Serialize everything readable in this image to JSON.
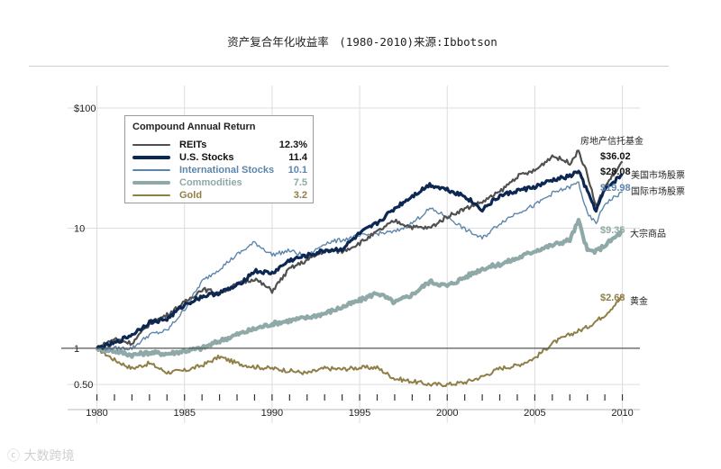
{
  "title": {
    "main": "资产复合年化收益率",
    "sub": "(1980-2010)来源:Ibbotson"
  },
  "chart_data": {
    "type": "line",
    "scale": "log",
    "ylim": [
      0.4,
      100
    ],
    "xlim": [
      1979,
      2011
    ],
    "yticks": [
      {
        "value": 100,
        "label": "$100"
      },
      {
        "value": 10,
        "label": "10"
      },
      {
        "value": 1,
        "label": "1"
      },
      {
        "value": 0.5,
        "label": "0.50"
      }
    ],
    "xticks": [
      1980,
      1985,
      1990,
      1995,
      2000,
      2005,
      2010
    ],
    "legend": {
      "title": "Compound Annual Return",
      "placement": "top-left"
    },
    "series": [
      {
        "name": "REITs",
        "return": "12.3%",
        "color": "#505050",
        "width": 2.2,
        "end_value": "$36.02",
        "end_label_cn": "房地产信托基金",
        "points": [
          [
            1980,
            1.0
          ],
          [
            1981,
            1.2
          ],
          [
            1982,
            1.1
          ],
          [
            1983,
            1.6
          ],
          [
            1984,
            1.9
          ],
          [
            1985,
            2.4
          ],
          [
            1986,
            3.1
          ],
          [
            1987,
            2.9
          ],
          [
            1988,
            3.4
          ],
          [
            1989,
            3.8
          ],
          [
            1990,
            3.0
          ],
          [
            1991,
            4.6
          ],
          [
            1992,
            5.4
          ],
          [
            1993,
            6.5
          ],
          [
            1994,
            6.4
          ],
          [
            1995,
            7.5
          ],
          [
            1996,
            9.3
          ],
          [
            1997,
            11.5
          ],
          [
            1998,
            10.2
          ],
          [
            1999,
            10.0
          ],
          [
            2000,
            12.5
          ],
          [
            2001,
            14.5
          ],
          [
            2002,
            16.5
          ],
          [
            2003,
            20
          ],
          [
            2004,
            27
          ],
          [
            2005,
            30
          ],
          [
            2006,
            40
          ],
          [
            2007,
            35
          ],
          [
            2007.5,
            44
          ],
          [
            2008,
            28
          ],
          [
            2008.5,
            15
          ],
          [
            2009,
            22
          ],
          [
            2010,
            36.02
          ]
        ]
      },
      {
        "name": "U.S. Stocks",
        "return": "11.4",
        "color": "#0c2752",
        "width": 3.2,
        "end_value": "$28.08",
        "end_label_cn": "美国市场股票",
        "points": [
          [
            1980,
            1.0
          ],
          [
            1981,
            1.1
          ],
          [
            1982,
            1.3
          ],
          [
            1983,
            1.65
          ],
          [
            1984,
            1.75
          ],
          [
            1985,
            2.3
          ],
          [
            1986,
            2.7
          ],
          [
            1987,
            2.9
          ],
          [
            1988,
            3.3
          ],
          [
            1989,
            4.4
          ],
          [
            1990,
            4.2
          ],
          [
            1991,
            5.4
          ],
          [
            1992,
            5.9
          ],
          [
            1993,
            6.5
          ],
          [
            1994,
            6.7
          ],
          [
            1995,
            9.0
          ],
          [
            1996,
            11.0
          ],
          [
            1997,
            14.6
          ],
          [
            1998,
            18.5
          ],
          [
            1999,
            23
          ],
          [
            2000,
            21
          ],
          [
            2001,
            18.5
          ],
          [
            2002,
            14.3
          ],
          [
            2003,
            18.5
          ],
          [
            2004,
            20.5
          ],
          [
            2005,
            22
          ],
          [
            2006,
            25
          ],
          [
            2007,
            27
          ],
          [
            2007.5,
            30
          ],
          [
            2008,
            20
          ],
          [
            2008.5,
            14
          ],
          [
            2009,
            21
          ],
          [
            2010,
            28.08
          ]
        ]
      },
      {
        "name": "International Stocks",
        "return": "10.1",
        "color": "#5d86ad",
        "width": 1.4,
        "end_value": "$19.98",
        "end_label_cn": "国际市场股票",
        "points": [
          [
            1980,
            1.0
          ],
          [
            1981,
            1.0
          ],
          [
            1982,
            1.0
          ],
          [
            1983,
            1.3
          ],
          [
            1984,
            1.4
          ],
          [
            1985,
            2.1
          ],
          [
            1986,
            3.6
          ],
          [
            1987,
            4.6
          ],
          [
            1988,
            6.0
          ],
          [
            1989,
            7.6
          ],
          [
            1990,
            6.0
          ],
          [
            1991,
            6.5
          ],
          [
            1992,
            5.8
          ],
          [
            1993,
            7.5
          ],
          [
            1994,
            8.0
          ],
          [
            1995,
            8.6
          ],
          [
            1996,
            9.0
          ],
          [
            1997,
            9.3
          ],
          [
            1998,
            11.0
          ],
          [
            1999,
            14.5
          ],
          [
            2000,
            12.5
          ],
          [
            2001,
            9.8
          ],
          [
            2002,
            8.2
          ],
          [
            2003,
            11.0
          ],
          [
            2004,
            13.5
          ],
          [
            2005,
            15.5
          ],
          [
            2006,
            19.5
          ],
          [
            2007,
            22
          ],
          [
            2007.5,
            24
          ],
          [
            2008,
            13
          ],
          [
            2008.5,
            11
          ],
          [
            2009,
            16
          ],
          [
            2010,
            19.98
          ]
        ]
      },
      {
        "name": "Commodities",
        "return": "7.5",
        "color": "#8ea9a7",
        "width": 4.2,
        "end_value": "$9.35",
        "end_label_cn": "大宗商品",
        "points": [
          [
            1980,
            1.0
          ],
          [
            1981,
            0.95
          ],
          [
            1982,
            0.88
          ],
          [
            1983,
            0.92
          ],
          [
            1984,
            0.9
          ],
          [
            1985,
            0.95
          ],
          [
            1986,
            1.0
          ],
          [
            1987,
            1.15
          ],
          [
            1988,
            1.3
          ],
          [
            1989,
            1.45
          ],
          [
            1990,
            1.6
          ],
          [
            1991,
            1.7
          ],
          [
            1992,
            1.8
          ],
          [
            1993,
            1.95
          ],
          [
            1994,
            2.2
          ],
          [
            1995,
            2.5
          ],
          [
            1996,
            2.9
          ],
          [
            1997,
            2.4
          ],
          [
            1998,
            2.8
          ],
          [
            1999,
            3.6
          ],
          [
            2000,
            3.3
          ],
          [
            2001,
            3.9
          ],
          [
            2002,
            4.6
          ],
          [
            2003,
            5.0
          ],
          [
            2004,
            5.6
          ],
          [
            2005,
            6.5
          ],
          [
            2006,
            7.2
          ],
          [
            2007,
            8.0
          ],
          [
            2007.5,
            11.5
          ],
          [
            2008,
            6.5
          ],
          [
            2008.5,
            6.4
          ],
          [
            2009,
            7.2
          ],
          [
            2010,
            9.35
          ]
        ]
      },
      {
        "name": "Gold",
        "return": "3.2",
        "color": "#8f7e47",
        "width": 2.0,
        "end_value": "$2.68",
        "end_label_cn": "黄金",
        "points": [
          [
            1980,
            1.0
          ],
          [
            1981,
            0.8
          ],
          [
            1982,
            0.68
          ],
          [
            1983,
            0.75
          ],
          [
            1984,
            0.63
          ],
          [
            1985,
            0.65
          ],
          [
            1986,
            0.72
          ],
          [
            1987,
            0.85
          ],
          [
            1988,
            0.75
          ],
          [
            1989,
            0.7
          ],
          [
            1990,
            0.68
          ],
          [
            1991,
            0.65
          ],
          [
            1992,
            0.62
          ],
          [
            1993,
            0.68
          ],
          [
            1994,
            0.67
          ],
          [
            1995,
            0.69
          ],
          [
            1996,
            0.69
          ],
          [
            1997,
            0.56
          ],
          [
            1998,
            0.53
          ],
          [
            1999,
            0.5
          ],
          [
            2000,
            0.5
          ],
          [
            2001,
            0.52
          ],
          [
            2002,
            0.58
          ],
          [
            2003,
            0.68
          ],
          [
            2004,
            0.72
          ],
          [
            2005,
            0.83
          ],
          [
            2006,
            1.1
          ],
          [
            2007,
            1.3
          ],
          [
            2008,
            1.5
          ],
          [
            2009,
            1.9
          ],
          [
            2010,
            2.68
          ]
        ]
      }
    ]
  },
  "watermark": "大数跨境"
}
